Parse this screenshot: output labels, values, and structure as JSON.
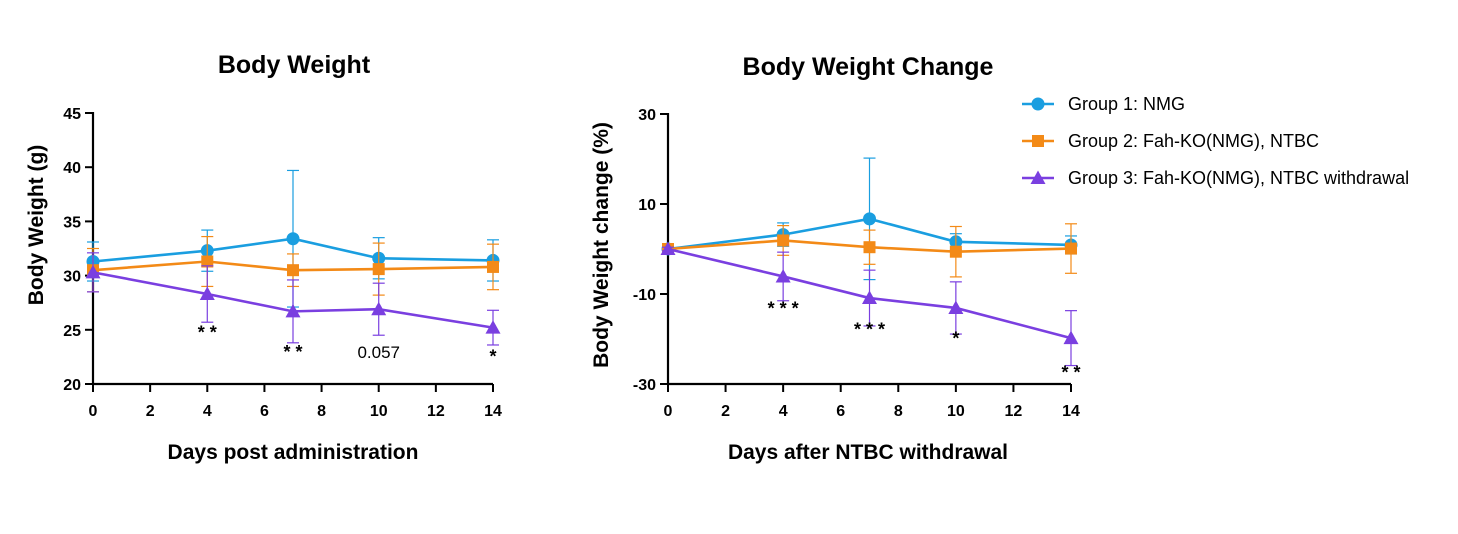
{
  "colors": {
    "group1": "#1a9ee0",
    "group2": "#f38a17",
    "group3": "#7a3fe0",
    "axis": "#000000"
  },
  "legend": {
    "items": [
      {
        "label": "Group 1: NMG",
        "marker": "circle",
        "color": "#1a9ee0"
      },
      {
        "label": "Group 2: Fah-KO(NMG),  NTBC",
        "marker": "square",
        "color": "#f38a17"
      },
      {
        "label": "Group 3: Fah-KO(NMG), NTBC withdrawal",
        "marker": "triangle",
        "color": "#7a3fe0"
      }
    ]
  },
  "chart_data": [
    {
      "type": "line",
      "title": "Body Weight",
      "xlabel": "Days post administration",
      "ylabel": "Body Weight (g)",
      "xlim": [
        0,
        14
      ],
      "ylim": [
        20,
        45
      ],
      "xticks": [
        0,
        2,
        4,
        6,
        8,
        10,
        12,
        14
      ],
      "yticks": [
        20,
        25,
        30,
        35,
        40,
        45
      ],
      "x": [
        0,
        4,
        7,
        10,
        14
      ],
      "series": [
        {
          "name": "Group 1: NMG",
          "values": [
            31.3,
            32.3,
            33.4,
            31.6,
            31.4
          ],
          "err": [
            1.8,
            1.9,
            6.3,
            1.9,
            1.9
          ]
        },
        {
          "name": "Group 2: Fah-KO(NMG),  NTBC",
          "values": [
            30.5,
            31.3,
            30.5,
            30.6,
            30.8
          ],
          "err": [
            2.0,
            2.3,
            1.5,
            2.4,
            2.1
          ]
        },
        {
          "name": "Group 3: Fah-KO(NMG), NTBC withdrawal",
          "values": [
            30.3,
            28.3,
            26.7,
            26.9,
            25.2
          ],
          "err": [
            1.8,
            2.6,
            2.9,
            2.4,
            1.6
          ]
        }
      ],
      "annotations": [
        {
          "x": 4,
          "y": 24.2,
          "text": "* *"
        },
        {
          "x": 7,
          "y": 22.4,
          "text": "* *"
        },
        {
          "x": 10,
          "y": 22.4,
          "text": "0.057"
        },
        {
          "x": 14,
          "y": 22.0,
          "text": "*"
        }
      ]
    },
    {
      "type": "line",
      "title": "Body Weight Change",
      "xlabel": "Days after NTBC withdrawal",
      "ylabel": "Body Weight change (%)",
      "xlim": [
        0,
        14
      ],
      "ylim": [
        -30,
        30
      ],
      "xticks": [
        0,
        2,
        4,
        6,
        8,
        10,
        12,
        14
      ],
      "yticks": [
        -30,
        -10,
        10,
        30
      ],
      "x": [
        0,
        4,
        7,
        10,
        14
      ],
      "series": [
        {
          "name": "Group 1: NMG",
          "values": [
            0,
            3.2,
            6.7,
            1.6,
            0.9
          ],
          "err": [
            0.4,
            2.6,
            13.5,
            1.8,
            2.0
          ]
        },
        {
          "name": "Group 2: Fah-KO(NMG),  NTBC",
          "values": [
            0,
            1.9,
            0.4,
            -0.6,
            0.1
          ],
          "err": [
            0.4,
            3.3,
            3.8,
            5.6,
            5.5
          ]
        },
        {
          "name": "Group 3: Fah-KO(NMG), NTBC withdrawal",
          "values": [
            0,
            -6.1,
            -10.9,
            -13.1,
            -19.8
          ],
          "err": [
            0.4,
            5.4,
            6.2,
            5.8,
            6.1
          ]
        }
      ],
      "annotations": [
        {
          "x": 4,
          "y": -14.5,
          "text": "* * *"
        },
        {
          "x": 7,
          "y": -19.2,
          "text": "* * *"
        },
        {
          "x": 10,
          "y": -21.2,
          "text": "*"
        },
        {
          "x": 14,
          "y": -28.8,
          "text": "* *"
        }
      ]
    }
  ]
}
